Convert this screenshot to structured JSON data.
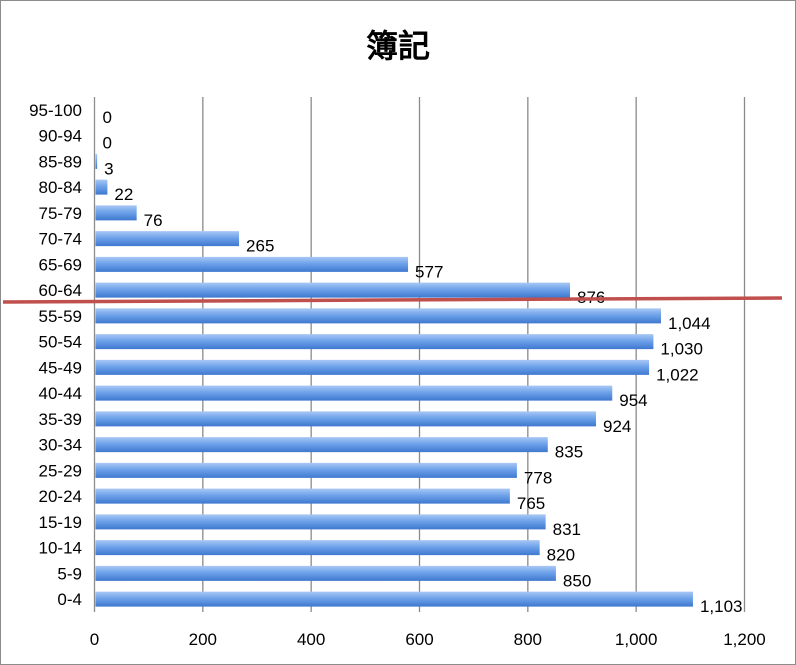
{
  "chart_data": {
    "type": "bar",
    "orientation": "horizontal",
    "title": "簿記",
    "xlabel": "",
    "ylabel": "",
    "categories": [
      "0-4",
      "5-9",
      "10-14",
      "15-19",
      "20-24",
      "25-29",
      "30-34",
      "35-39",
      "40-44",
      "45-49",
      "50-54",
      "55-59",
      "60-64",
      "65-69",
      "70-74",
      "75-79",
      "80-84",
      "85-89",
      "90-94",
      "95-100"
    ],
    "values": [
      1103,
      850,
      820,
      831,
      765,
      778,
      835,
      924,
      954,
      1022,
      1030,
      1044,
      876,
      577,
      265,
      76,
      22,
      3,
      0,
      0
    ],
    "data_labels": [
      "1,103",
      "850",
      "820",
      "831",
      "765",
      "778",
      "835",
      "924",
      "954",
      "1,022",
      "1,030",
      "1,044",
      "876",
      "577",
      "265",
      "76",
      "22",
      "3",
      "0",
      "0"
    ],
    "xlim": [
      0,
      1200
    ],
    "x_ticks": [
      0,
      200,
      400,
      600,
      800,
      1000,
      1200
    ],
    "x_tick_labels": [
      "0",
      "200",
      "400",
      "600",
      "800",
      "1,000",
      "1,200"
    ],
    "grid": "vertical",
    "legend": "none",
    "bar_color": "#4a86d8",
    "annotation": {
      "type": "line",
      "color": "#c0504d",
      "position": "between 55-59 and 60-64"
    }
  }
}
